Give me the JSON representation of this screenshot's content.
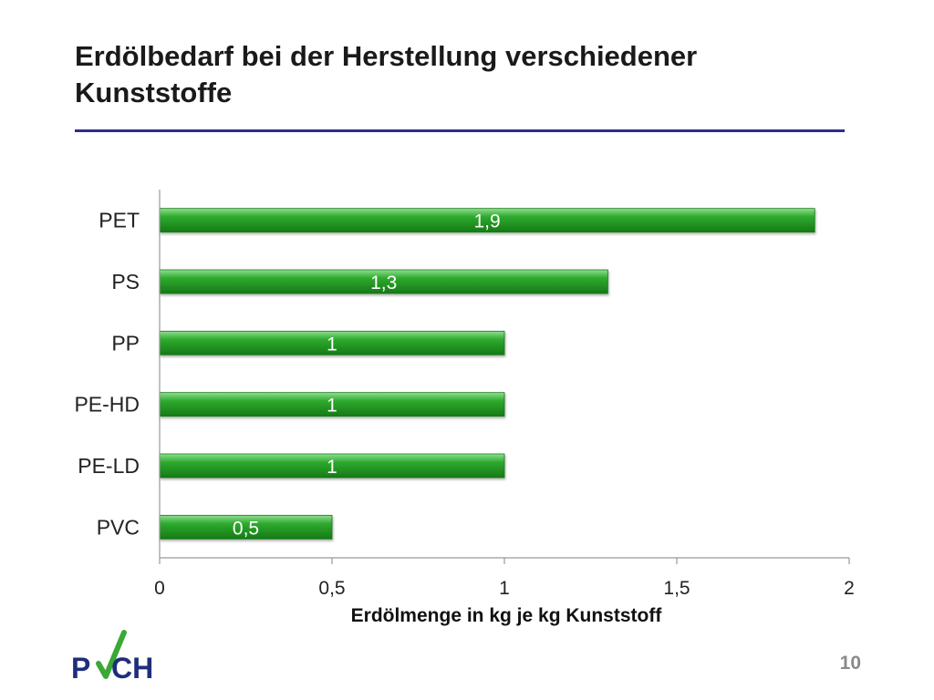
{
  "slide": {
    "title": "Erdölbedarf bei der Herstellung verschiedener Kunststoffe",
    "page_number": "10",
    "logo_text": "PVCH",
    "accent_color": "#2a2f8c"
  },
  "chart_data": {
    "type": "bar",
    "orientation": "horizontal",
    "categories": [
      "PET",
      "PS",
      "PP",
      "PE-HD",
      "PE-LD",
      "PVC"
    ],
    "values": [
      1.9,
      1.3,
      1,
      1,
      1,
      0.5
    ],
    "value_labels": [
      "1,9",
      "1,3",
      "1",
      "1",
      "1",
      "0,5"
    ],
    "xlabel": "Erdölmenge in kg je kg Kunststoff",
    "ylabel": "",
    "xlim": [
      0,
      2
    ],
    "xticks": [
      0,
      0.5,
      1,
      1.5,
      2
    ],
    "xtick_labels": [
      "0",
      "0,5",
      "1",
      "1,5",
      "2"
    ],
    "grid": false,
    "legend": "none",
    "bar_color": "#2ea82e"
  }
}
